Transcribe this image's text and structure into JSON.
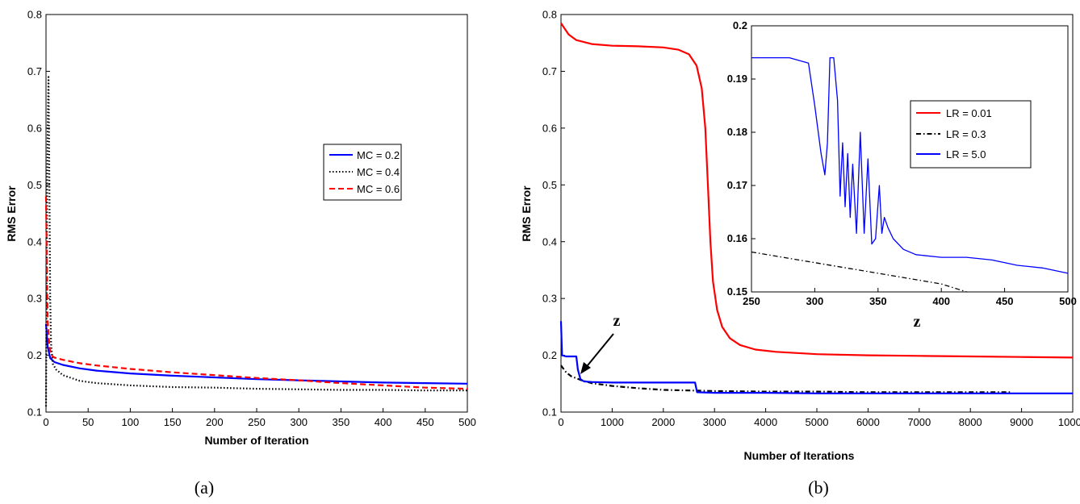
{
  "chart_data": [
    {
      "id": "a",
      "type": "line",
      "caption": "(a)",
      "xlabel": "Number of Iteration",
      "ylabel": "RMS Error",
      "xlim": [
        0,
        500
      ],
      "ylim": [
        0.1,
        0.8
      ],
      "xticks": [
        0,
        50,
        100,
        150,
        200,
        250,
        300,
        350,
        400,
        450,
        500
      ],
      "yticks": [
        0.1,
        0.2,
        0.3,
        0.4,
        0.5,
        0.6,
        0.7,
        0.8
      ],
      "grid": false,
      "legend_position": "right",
      "series": [
        {
          "name": "MC = 0.2",
          "color": "#0000ff",
          "style": "solid",
          "points": [
            [
              0,
              0.255
            ],
            [
              2,
              0.215
            ],
            [
              5,
              0.195
            ],
            [
              10,
              0.188
            ],
            [
              20,
              0.183
            ],
            [
              40,
              0.177
            ],
            [
              60,
              0.173
            ],
            [
              100,
              0.168
            ],
            [
              150,
              0.164
            ],
            [
              200,
              0.161
            ],
            [
              250,
              0.158
            ],
            [
              300,
              0.156
            ],
            [
              350,
              0.154
            ],
            [
              400,
              0.152
            ],
            [
              450,
              0.151
            ],
            [
              500,
              0.15
            ]
          ]
        },
        {
          "name": "MC = 0.4",
          "color": "#000000",
          "style": "dotted",
          "points": [
            [
              0,
              0.11
            ],
            [
              1,
              0.4
            ],
            [
              2,
              0.6
            ],
            [
              3,
              0.69
            ],
            [
              4,
              0.5
            ],
            [
              5,
              0.3
            ],
            [
              6,
              0.22
            ],
            [
              8,
              0.185
            ],
            [
              12,
              0.175
            ],
            [
              20,
              0.165
            ],
            [
              40,
              0.155
            ],
            [
              60,
              0.151
            ],
            [
              100,
              0.147
            ],
            [
              150,
              0.144
            ],
            [
              200,
              0.143
            ],
            [
              250,
              0.141
            ],
            [
              300,
              0.14
            ],
            [
              350,
              0.139
            ],
            [
              400,
              0.139
            ],
            [
              450,
              0.138
            ],
            [
              500,
              0.138
            ]
          ]
        },
        {
          "name": "MC = 0.6",
          "color": "#ff0000",
          "style": "dashed",
          "points": [
            [
              0,
              0.48
            ],
            [
              1,
              0.36
            ],
            [
              2,
              0.26
            ],
            [
              4,
              0.215
            ],
            [
              6,
              0.2
            ],
            [
              10,
              0.196
            ],
            [
              20,
              0.192
            ],
            [
              40,
              0.186
            ],
            [
              60,
              0.182
            ],
            [
              100,
              0.176
            ],
            [
              150,
              0.17
            ],
            [
              200,
              0.165
            ],
            [
              250,
              0.16
            ],
            [
              300,
              0.156
            ],
            [
              350,
              0.151
            ],
            [
              400,
              0.147
            ],
            [
              450,
              0.143
            ],
            [
              500,
              0.141
            ]
          ]
        }
      ]
    },
    {
      "id": "b",
      "type": "line",
      "caption": "(b)",
      "xlabel": "Number of Iterations",
      "ylabel": "RMS Error",
      "xlim": [
        0,
        10000
      ],
      "ylim": [
        0.1,
        0.8
      ],
      "xticks": [
        0,
        1000,
        2000,
        3000,
        4000,
        5000,
        6000,
        7000,
        8000,
        9000,
        10000
      ],
      "yticks": [
        0.1,
        0.2,
        0.3,
        0.4,
        0.5,
        0.6,
        0.7,
        0.8
      ],
      "grid": false,
      "legend_position": "inset top-right",
      "annotation": "z",
      "series": [
        {
          "name": "LR = 0.01",
          "color": "#ff0000",
          "style": "solid",
          "points": [
            [
              0,
              0.785
            ],
            [
              50,
              0.778
            ],
            [
              150,
              0.765
            ],
            [
              300,
              0.755
            ],
            [
              600,
              0.748
            ],
            [
              1000,
              0.745
            ],
            [
              1500,
              0.744
            ],
            [
              2000,
              0.742
            ],
            [
              2300,
              0.738
            ],
            [
              2500,
              0.73
            ],
            [
              2650,
              0.71
            ],
            [
              2750,
              0.67
            ],
            [
              2820,
              0.6
            ],
            [
              2870,
              0.5
            ],
            [
              2920,
              0.4
            ],
            [
              2970,
              0.33
            ],
            [
              3050,
              0.28
            ],
            [
              3150,
              0.25
            ],
            [
              3300,
              0.23
            ],
            [
              3500,
              0.218
            ],
            [
              3800,
              0.21
            ],
            [
              4200,
              0.206
            ],
            [
              5000,
              0.202
            ],
            [
              6000,
              0.2
            ],
            [
              7000,
              0.199
            ],
            [
              8000,
              0.198
            ],
            [
              9000,
              0.197
            ],
            [
              10000,
              0.196
            ]
          ]
        },
        {
          "name": "LR = 0.3",
          "color": "#000000",
          "style": "dashdot",
          "points": [
            [
              0,
              0.182
            ],
            [
              50,
              0.176
            ],
            [
              100,
              0.17
            ],
            [
              200,
              0.163
            ],
            [
              400,
              0.156
            ],
            [
              600,
              0.151
            ],
            [
              1000,
              0.146
            ],
            [
              1500,
              0.142
            ],
            [
              2000,
              0.139
            ],
            [
              2500,
              0.138
            ],
            [
              3000,
              0.137
            ],
            [
              4000,
              0.136
            ],
            [
              5000,
              0.136
            ],
            [
              6000,
              0.135
            ],
            [
              7000,
              0.135
            ],
            [
              8000,
              0.135
            ],
            [
              8800,
              0.135
            ]
          ]
        },
        {
          "name": "LR = 5.0",
          "color": "#0000ff",
          "style": "solid",
          "points": [
            [
              0,
              0.26
            ],
            [
              20,
              0.2
            ],
            [
              100,
              0.198
            ],
            [
              300,
              0.198
            ],
            [
              330,
              0.175
            ],
            [
              380,
              0.158
            ],
            [
              450,
              0.154
            ],
            [
              600,
              0.153
            ],
            [
              1000,
              0.152
            ],
            [
              2000,
              0.152
            ],
            [
              2620,
              0.152
            ],
            [
              2660,
              0.135
            ],
            [
              3000,
              0.134
            ],
            [
              4000,
              0.134
            ],
            [
              5000,
              0.133
            ],
            [
              6000,
              0.133
            ],
            [
              8000,
              0.133
            ],
            [
              10000,
              0.133
            ]
          ]
        }
      ]
    },
    {
      "id": "b-inset",
      "type": "line",
      "caption": "z",
      "xlim": [
        250,
        500
      ],
      "ylim": [
        0.15,
        0.2
      ],
      "xticks": [
        250,
        300,
        350,
        400,
        450,
        500
      ],
      "yticks": [
        0.15,
        0.16,
        0.17,
        0.18,
        0.19,
        0.2
      ],
      "grid": false,
      "series": [
        {
          "name": "LR = 5.0",
          "color": "#0000ff",
          "style": "solid",
          "points": [
            [
              250,
              0.194
            ],
            [
              280,
              0.194
            ],
            [
              295,
              0.193
            ],
            [
              300,
              0.185
            ],
            [
              305,
              0.176
            ],
            [
              308,
              0.172
            ],
            [
              310,
              0.178
            ],
            [
              312,
              0.194
            ],
            [
              315,
              0.194
            ],
            [
              318,
              0.186
            ],
            [
              320,
              0.168
            ],
            [
              322,
              0.178
            ],
            [
              324,
              0.166
            ],
            [
              326,
              0.176
            ],
            [
              328,
              0.164
            ],
            [
              330,
              0.174
            ],
            [
              333,
              0.161
            ],
            [
              336,
              0.18
            ],
            [
              339,
              0.161
            ],
            [
              342,
              0.175
            ],
            [
              345,
              0.159
            ],
            [
              348,
              0.16
            ],
            [
              351,
              0.17
            ],
            [
              353,
              0.161
            ],
            [
              355,
              0.164
            ],
            [
              358,
              0.162
            ],
            [
              362,
              0.16
            ],
            [
              370,
              0.158
            ],
            [
              380,
              0.157
            ],
            [
              400,
              0.1565
            ],
            [
              420,
              0.1565
            ],
            [
              440,
              0.156
            ],
            [
              460,
              0.155
            ],
            [
              480,
              0.1545
            ],
            [
              500,
              0.1535
            ]
          ]
        },
        {
          "name": "LR = 0.3",
          "color": "#000000",
          "style": "dashdot",
          "points": [
            [
              250,
              0.1575
            ],
            [
              300,
              0.1555
            ],
            [
              350,
              0.1535
            ],
            [
              400,
              0.1515
            ],
            [
              420,
              0.15
            ]
          ]
        }
      ]
    }
  ]
}
